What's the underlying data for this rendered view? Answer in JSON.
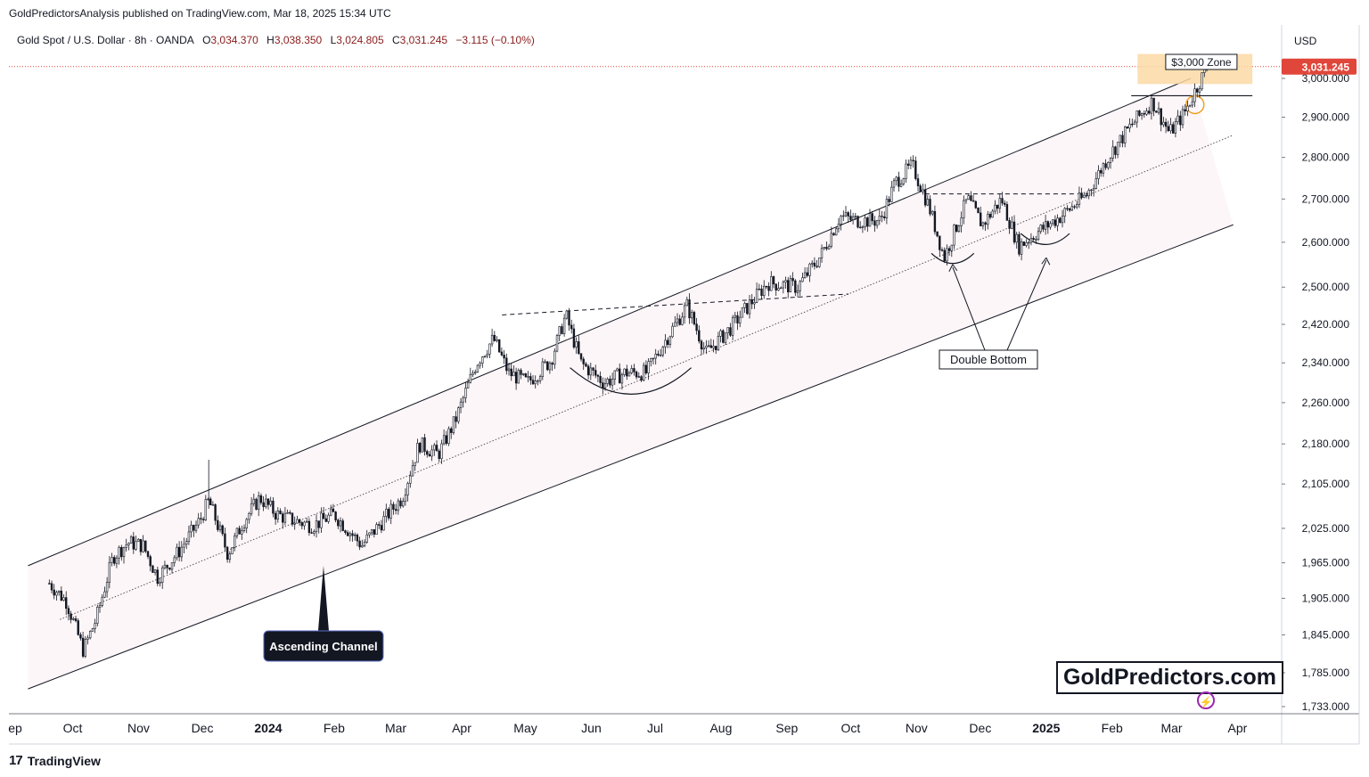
{
  "publisher_line": "GoldPredictorsAnalysis published on TradingView.com, Mar 18, 2025 15:34 UTC",
  "legend": {
    "symbol": "Gold Spot / U.S. Dollar · 8h · OANDA",
    "o_label": "O",
    "o_value": "3,034.370",
    "h_label": "H",
    "h_value": "3,038.350",
    "l_label": "L",
    "l_value": "3,024.805",
    "c_label": "C",
    "c_value": "3,031.245",
    "change": "−3.115 (−0.10%)"
  },
  "currency": "USD",
  "footer_brand": "TradingView",
  "watermark": "GoldPredictors.com",
  "icons": {
    "footer": "tradingview-logo-icon",
    "flash": "lightning-icon"
  },
  "colors": {
    "price_badge": "#e0463a",
    "zone_fill": "#fbd9a4",
    "zone_circle": "#f0a020",
    "channel_fill": "#fdf6f8",
    "candle_up": "#131722",
    "candle_down": "#131722"
  },
  "chart_data": {
    "type": "candlestick",
    "scale": "log",
    "ylim": [
      1733,
      3060
    ],
    "y_ticks": [
      "3,000.000",
      "2,900.000",
      "2,800.000",
      "2,700.000",
      "2,600.000",
      "2,500.000",
      "2,420.000",
      "2,340.000",
      "2,260.000",
      "2,180.000",
      "2,105.000",
      "2,025.000",
      "1,965.000",
      "1,905.000",
      "1,845.000",
      "1,785.000",
      "1,733.000"
    ],
    "y_tick_values": [
      3000,
      2900,
      2800,
      2700,
      2600,
      2500,
      2420,
      2340,
      2260,
      2180,
      2105,
      2025,
      1965,
      1905,
      1845,
      1785,
      1733
    ],
    "x_ticks": [
      "ep",
      "Oct",
      "Nov",
      "Dec",
      "2024",
      "Feb",
      "Mar",
      "Apr",
      "May",
      "Jun",
      "Jul",
      "Aug",
      "Sep",
      "Oct",
      "Nov",
      "Dec",
      "2025",
      "Feb",
      "Mar",
      "Apr"
    ],
    "x_tick_dates": [
      "2023-09",
      "2023-10",
      "2023-11",
      "2023-12",
      "2024-01",
      "2024-02",
      "2024-03",
      "2024-04",
      "2024-05",
      "2024-06",
      "2024-07",
      "2024-08",
      "2024-09",
      "2024-10",
      "2024-11",
      "2024-12",
      "2025-01",
      "2025-02",
      "2025-03",
      "2025-04"
    ],
    "bold_ticks": [
      "2024",
      "2025"
    ],
    "last_price": "3,031.245",
    "last_price_value": 3031.245,
    "close_path": [
      [
        "2023-09-20",
        1930
      ],
      [
        "2023-09-28",
        1900
      ],
      [
        "2023-10-06",
        1820
      ],
      [
        "2023-10-12",
        1870
      ],
      [
        "2023-10-20",
        1975
      ],
      [
        "2023-10-27",
        2000
      ],
      [
        "2023-11-03",
        1995
      ],
      [
        "2023-11-10",
        1940
      ],
      [
        "2023-11-20",
        1985
      ],
      [
        "2023-11-30",
        2040
      ],
      [
        "2023-12-04",
        2075
      ],
      [
        "2023-12-13",
        1980
      ],
      [
        "2023-12-20",
        2035
      ],
      [
        "2023-12-28",
        2080
      ],
      [
        "2024-01-05",
        2050
      ],
      [
        "2024-01-12",
        2040
      ],
      [
        "2024-01-22",
        2030
      ],
      [
        "2024-02-01",
        2050
      ],
      [
        "2024-02-14",
        1995
      ],
      [
        "2024-02-22",
        2030
      ],
      [
        "2024-03-04",
        2080
      ],
      [
        "2024-03-12",
        2180
      ],
      [
        "2024-03-21",
        2160
      ],
      [
        "2024-03-29",
        2225
      ],
      [
        "2024-04-08",
        2340
      ],
      [
        "2024-04-16",
        2390
      ],
      [
        "2024-04-23",
        2320
      ],
      [
        "2024-05-02",
        2300
      ],
      [
        "2024-05-13",
        2345
      ],
      [
        "2024-05-20",
        2440
      ],
      [
        "2024-05-27",
        2340
      ],
      [
        "2024-06-07",
        2300
      ],
      [
        "2024-06-17",
        2320
      ],
      [
        "2024-06-27",
        2320
      ],
      [
        "2024-07-05",
        2380
      ],
      [
        "2024-07-16",
        2460
      ],
      [
        "2024-07-25",
        2360
      ],
      [
        "2024-08-05",
        2410
      ],
      [
        "2024-08-14",
        2460
      ],
      [
        "2024-08-23",
        2510
      ],
      [
        "2024-09-06",
        2500
      ],
      [
        "2024-09-17",
        2570
      ],
      [
        "2024-09-26",
        2660
      ],
      [
        "2024-10-03",
        2650
      ],
      [
        "2024-10-15",
        2650
      ],
      [
        "2024-10-22",
        2740
      ],
      [
        "2024-10-30",
        2780
      ],
      [
        "2024-11-07",
        2680
      ],
      [
        "2024-11-14",
        2565
      ],
      [
        "2024-11-25",
        2700
      ],
      [
        "2024-12-02",
        2640
      ],
      [
        "2024-12-11",
        2700
      ],
      [
        "2024-12-19",
        2590
      ],
      [
        "2024-12-27",
        2620
      ],
      [
        "2025-01-08",
        2660
      ],
      [
        "2025-01-20",
        2710
      ],
      [
        "2025-01-30",
        2800
      ],
      [
        "2025-02-10",
        2880
      ],
      [
        "2025-02-20",
        2940
      ],
      [
        "2025-02-28",
        2860
      ],
      [
        "2025-03-07",
        2910
      ],
      [
        "2025-03-14",
        2990
      ],
      [
        "2025-03-18",
        3031.245
      ]
    ],
    "annotations": [
      {
        "text": "Ascending Channel",
        "type": "callout"
      },
      {
        "text": "Double Bottom",
        "type": "callout"
      },
      {
        "text": "$3,000 Zone",
        "type": "label"
      }
    ]
  }
}
